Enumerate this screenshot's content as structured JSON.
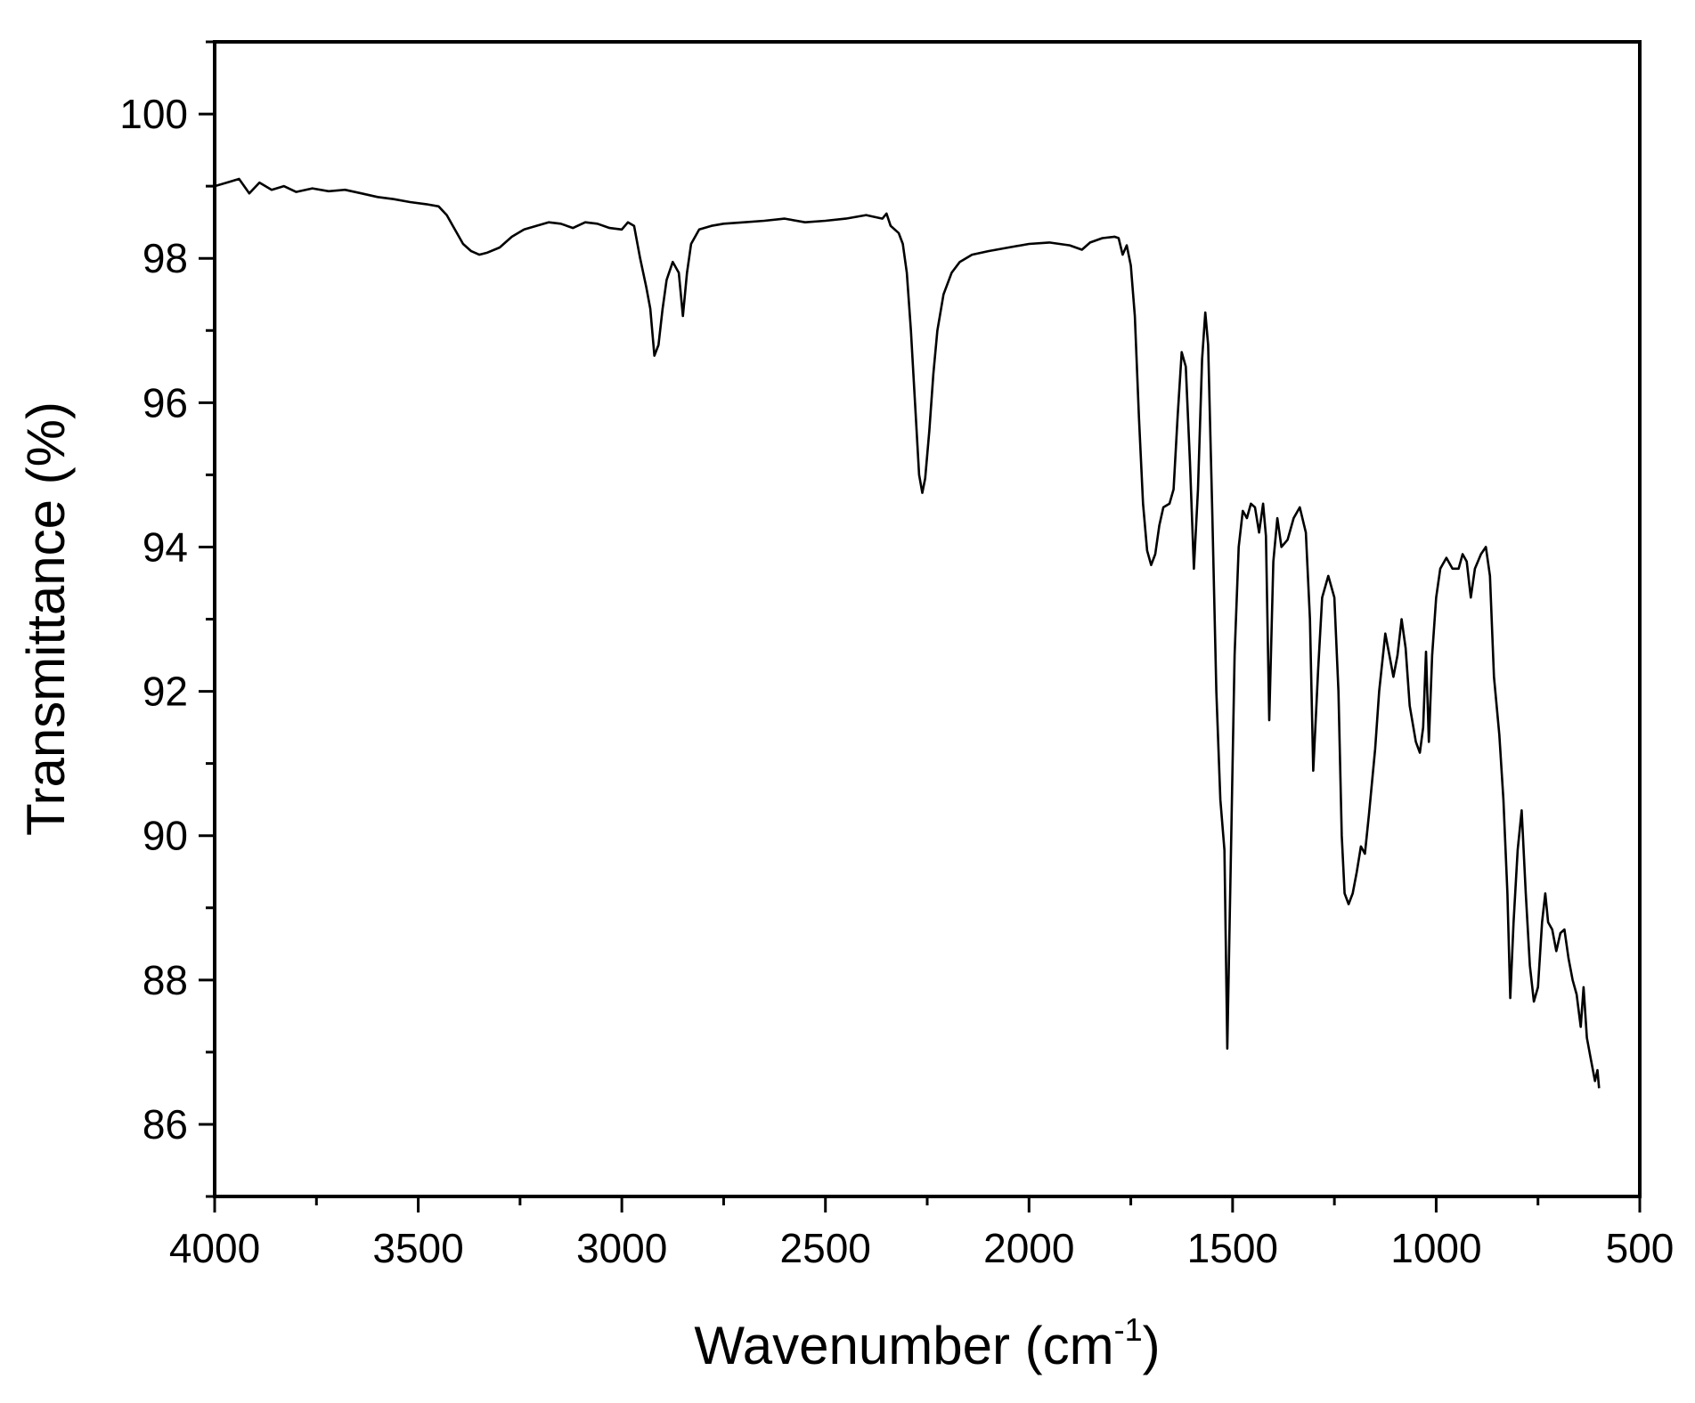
{
  "chart_data": {
    "type": "line",
    "title": "",
    "xlabel": "Wavenumber (cm",
    "xlabel_sup": "-1",
    "xlabel_close": ")",
    "ylabel": "Transmittance (%)",
    "xlim": [
      4000,
      500
    ],
    "ylim": [
      85,
      101
    ],
    "x_reversed": true,
    "grid": false,
    "x_ticks": [
      4000,
      3500,
      3000,
      2500,
      2000,
      1500,
      1000,
      500
    ],
    "x_tick_labels": [
      "4000",
      "3500",
      "3000",
      "2500",
      "2000",
      "1500",
      "1000",
      "500"
    ],
    "y_ticks": [
      86,
      88,
      90,
      92,
      94,
      96,
      98,
      100
    ],
    "y_tick_labels": [
      "86",
      "88",
      "90",
      "92",
      "94",
      "96",
      "98",
      "100"
    ],
    "line_color": "#000000",
    "series": [
      {
        "points": [
          [
            4000,
            99.0
          ],
          [
            3970,
            99.05
          ],
          [
            3940,
            99.1
          ],
          [
            3915,
            98.9
          ],
          [
            3890,
            99.05
          ],
          [
            3860,
            98.95
          ],
          [
            3830,
            99.0
          ],
          [
            3800,
            98.92
          ],
          [
            3760,
            98.97
          ],
          [
            3720,
            98.93
          ],
          [
            3680,
            98.95
          ],
          [
            3640,
            98.9
          ],
          [
            3600,
            98.85
          ],
          [
            3560,
            98.82
          ],
          [
            3520,
            98.78
          ],
          [
            3480,
            98.75
          ],
          [
            3450,
            98.72
          ],
          [
            3430,
            98.6
          ],
          [
            3410,
            98.4
          ],
          [
            3390,
            98.2
          ],
          [
            3370,
            98.1
          ],
          [
            3350,
            98.05
          ],
          [
            3330,
            98.08
          ],
          [
            3300,
            98.15
          ],
          [
            3270,
            98.3
          ],
          [
            3240,
            98.4
          ],
          [
            3210,
            98.45
          ],
          [
            3180,
            98.5
          ],
          [
            3150,
            98.48
          ],
          [
            3120,
            98.42
          ],
          [
            3090,
            98.5
          ],
          [
            3060,
            98.48
          ],
          [
            3030,
            98.42
          ],
          [
            3000,
            98.4
          ],
          [
            2985,
            98.5
          ],
          [
            2970,
            98.45
          ],
          [
            2955,
            98.0
          ],
          [
            2940,
            97.6
          ],
          [
            2930,
            97.3
          ],
          [
            2920,
            96.65
          ],
          [
            2910,
            96.8
          ],
          [
            2900,
            97.3
          ],
          [
            2890,
            97.7
          ],
          [
            2875,
            97.95
          ],
          [
            2860,
            97.8
          ],
          [
            2850,
            97.2
          ],
          [
            2840,
            97.8
          ],
          [
            2830,
            98.2
          ],
          [
            2810,
            98.4
          ],
          [
            2780,
            98.45
          ],
          [
            2750,
            98.48
          ],
          [
            2700,
            98.5
          ],
          [
            2650,
            98.52
          ],
          [
            2600,
            98.55
          ],
          [
            2550,
            98.5
          ],
          [
            2500,
            98.52
          ],
          [
            2450,
            98.55
          ],
          [
            2400,
            98.6
          ],
          [
            2360,
            98.55
          ],
          [
            2350,
            98.62
          ],
          [
            2340,
            98.45
          ],
          [
            2320,
            98.35
          ],
          [
            2310,
            98.2
          ],
          [
            2300,
            97.8
          ],
          [
            2290,
            97.0
          ],
          [
            2280,
            96.0
          ],
          [
            2270,
            95.0
          ],
          [
            2262,
            94.75
          ],
          [
            2255,
            94.95
          ],
          [
            2245,
            95.6
          ],
          [
            2235,
            96.4
          ],
          [
            2225,
            97.0
          ],
          [
            2210,
            97.5
          ],
          [
            2190,
            97.8
          ],
          [
            2170,
            97.95
          ],
          [
            2140,
            98.05
          ],
          [
            2100,
            98.1
          ],
          [
            2050,
            98.15
          ],
          [
            2000,
            98.2
          ],
          [
            1950,
            98.22
          ],
          [
            1900,
            98.18
          ],
          [
            1870,
            98.12
          ],
          [
            1850,
            98.22
          ],
          [
            1820,
            98.28
          ],
          [
            1790,
            98.3
          ],
          [
            1780,
            98.28
          ],
          [
            1770,
            98.05
          ],
          [
            1760,
            98.18
          ],
          [
            1750,
            97.9
          ],
          [
            1740,
            97.2
          ],
          [
            1730,
            95.8
          ],
          [
            1720,
            94.6
          ],
          [
            1710,
            93.95
          ],
          [
            1700,
            93.75
          ],
          [
            1690,
            93.9
          ],
          [
            1680,
            94.3
          ],
          [
            1670,
            94.55
          ],
          [
            1655,
            94.6
          ],
          [
            1645,
            94.8
          ],
          [
            1635,
            95.8
          ],
          [
            1625,
            96.7
          ],
          [
            1615,
            96.5
          ],
          [
            1605,
            95.2
          ],
          [
            1595,
            93.7
          ],
          [
            1585,
            94.8
          ],
          [
            1575,
            96.6
          ],
          [
            1567,
            97.25
          ],
          [
            1560,
            96.8
          ],
          [
            1550,
            94.5
          ],
          [
            1540,
            92.0
          ],
          [
            1530,
            90.5
          ],
          [
            1520,
            89.8
          ],
          [
            1513,
            87.05
          ],
          [
            1505,
            89.5
          ],
          [
            1495,
            92.5
          ],
          [
            1485,
            94.0
          ],
          [
            1475,
            94.5
          ],
          [
            1465,
            94.4
          ],
          [
            1455,
            94.6
          ],
          [
            1445,
            94.55
          ],
          [
            1435,
            94.2
          ],
          [
            1425,
            94.6
          ],
          [
            1418,
            94.15
          ],
          [
            1410,
            91.6
          ],
          [
            1400,
            93.8
          ],
          [
            1390,
            94.4
          ],
          [
            1380,
            94.0
          ],
          [
            1365,
            94.1
          ],
          [
            1350,
            94.4
          ],
          [
            1335,
            94.55
          ],
          [
            1320,
            94.2
          ],
          [
            1310,
            93.0
          ],
          [
            1302,
            90.9
          ],
          [
            1290,
            92.3
          ],
          [
            1280,
            93.3
          ],
          [
            1265,
            93.6
          ],
          [
            1250,
            93.3
          ],
          [
            1240,
            92.0
          ],
          [
            1232,
            90.0
          ],
          [
            1225,
            89.2
          ],
          [
            1215,
            89.05
          ],
          [
            1205,
            89.2
          ],
          [
            1195,
            89.5
          ],
          [
            1185,
            89.85
          ],
          [
            1175,
            89.75
          ],
          [
            1165,
            90.3
          ],
          [
            1150,
            91.2
          ],
          [
            1140,
            92.0
          ],
          [
            1125,
            92.8
          ],
          [
            1115,
            92.5
          ],
          [
            1105,
            92.2
          ],
          [
            1095,
            92.5
          ],
          [
            1085,
            93.0
          ],
          [
            1075,
            92.6
          ],
          [
            1065,
            91.8
          ],
          [
            1050,
            91.3
          ],
          [
            1040,
            91.15
          ],
          [
            1032,
            91.5
          ],
          [
            1025,
            92.55
          ],
          [
            1018,
            91.3
          ],
          [
            1010,
            92.5
          ],
          [
            1000,
            93.3
          ],
          [
            990,
            93.7
          ],
          [
            975,
            93.85
          ],
          [
            960,
            93.7
          ],
          [
            945,
            93.7
          ],
          [
            935,
            93.9
          ],
          [
            925,
            93.8
          ],
          [
            915,
            93.3
          ],
          [
            905,
            93.7
          ],
          [
            890,
            93.9
          ],
          [
            878,
            94.0
          ],
          [
            868,
            93.6
          ],
          [
            858,
            92.2
          ],
          [
            845,
            91.4
          ],
          [
            835,
            90.5
          ],
          [
            825,
            89.2
          ],
          [
            818,
            87.75
          ],
          [
            810,
            88.8
          ],
          [
            800,
            89.8
          ],
          [
            790,
            90.35
          ],
          [
            780,
            89.2
          ],
          [
            770,
            88.2
          ],
          [
            760,
            87.7
          ],
          [
            750,
            87.9
          ],
          [
            740,
            88.8
          ],
          [
            732,
            89.2
          ],
          [
            725,
            88.8
          ],
          [
            715,
            88.7
          ],
          [
            705,
            88.4
          ],
          [
            695,
            88.65
          ],
          [
            685,
            88.7
          ],
          [
            675,
            88.3
          ],
          [
            665,
            88.0
          ],
          [
            655,
            87.8
          ],
          [
            645,
            87.35
          ],
          [
            638,
            87.9
          ],
          [
            630,
            87.2
          ],
          [
            620,
            86.9
          ],
          [
            610,
            86.6
          ],
          [
            604,
            86.75
          ],
          [
            600,
            86.5
          ]
        ]
      }
    ]
  }
}
